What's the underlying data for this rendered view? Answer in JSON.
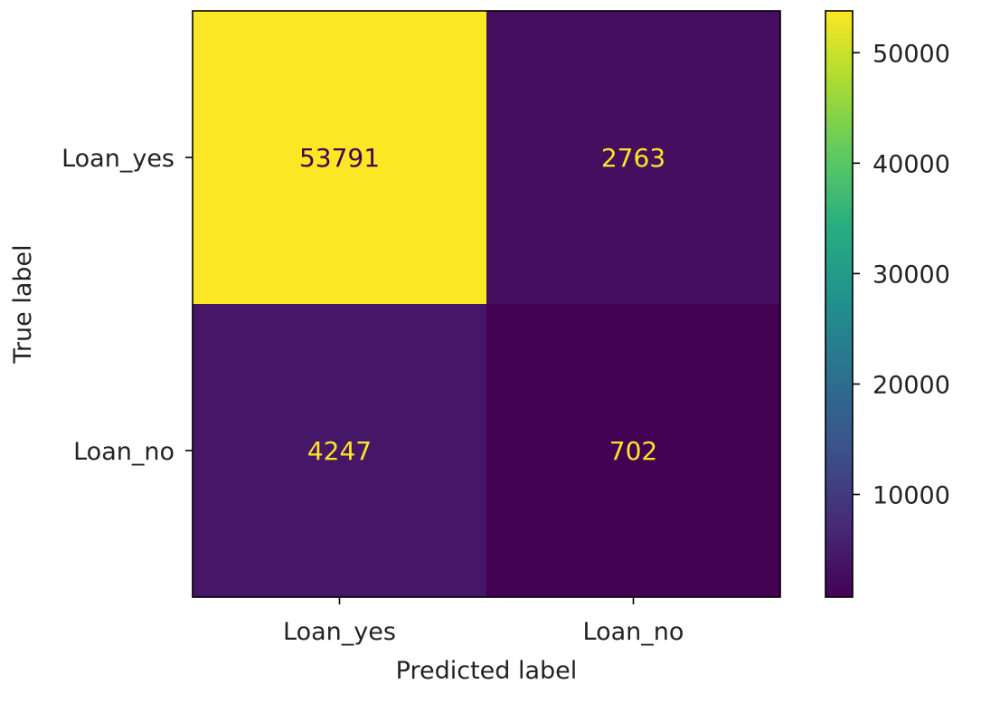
{
  "chart_data": {
    "type": "heatmap",
    "title": "",
    "xlabel": "Predicted label",
    "ylabel": "True label",
    "x_categories": [
      "Loan_yes",
      "Loan_no"
    ],
    "y_categories": [
      "Loan_yes",
      "Loan_no"
    ],
    "matrix": [
      [
        53791,
        2763
      ],
      [
        4247,
        702
      ]
    ],
    "colormap": "viridis",
    "colorbar": {
      "min": 702,
      "max": 53791,
      "ticks": [
        10000,
        20000,
        30000,
        40000,
        50000
      ]
    },
    "annotation_colors": {
      "on_dark": "#fde725",
      "on_light": "#440154"
    },
    "grid": false,
    "legend": "colorbar-right"
  }
}
